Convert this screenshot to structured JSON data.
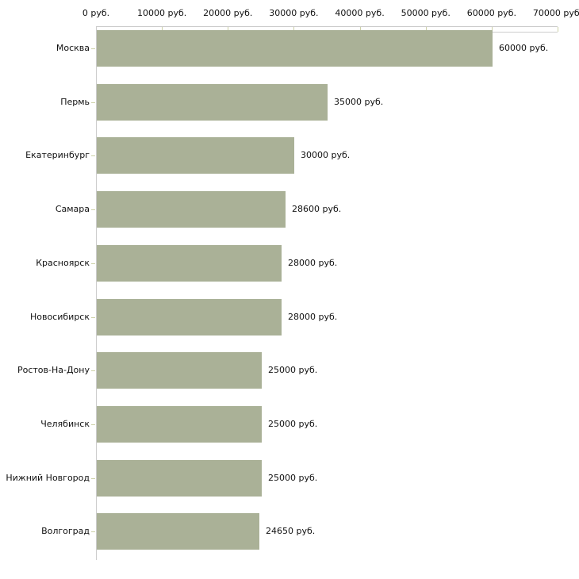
{
  "chart_data": {
    "type": "bar",
    "orientation": "horizontal",
    "title": "",
    "xlabel": "",
    "ylabel": "",
    "unit": "руб.",
    "categories": [
      "Москва",
      "Пермь",
      "Екатеринбург",
      "Самара",
      "Красноярск",
      "Новосибирск",
      "Ростов-На-Дону",
      "Челябинск",
      "Нижний Новгород",
      "Волгоград"
    ],
    "values": [
      60000,
      35000,
      30000,
      28600,
      28000,
      28000,
      25000,
      25000,
      25000,
      24650
    ],
    "value_labels": [
      "60000 руб.",
      "35000 руб.",
      "30000 руб.",
      "28600 руб.",
      "28000 руб.",
      "28000 руб.",
      "25000 руб.",
      "25000 руб.",
      "25000 руб.",
      "24650 руб."
    ],
    "x_tick_values": [
      0,
      10000,
      20000,
      30000,
      40000,
      50000,
      60000,
      70000
    ],
    "x_tick_labels": [
      "0 руб.",
      "10000 руб.",
      "20000 руб.",
      "30000 руб.",
      "40000 руб.",
      "50000 руб.",
      "60000 руб.",
      "70000 руб."
    ],
    "xlim": [
      0,
      70000
    ],
    "grid": "off",
    "legend": "none",
    "colors": {
      "bar_fill": "#aab197",
      "axis_line": "#cccccc",
      "ruler_tick": "#cdd1a8",
      "text": "#111111",
      "background": "#ffffff"
    }
  }
}
